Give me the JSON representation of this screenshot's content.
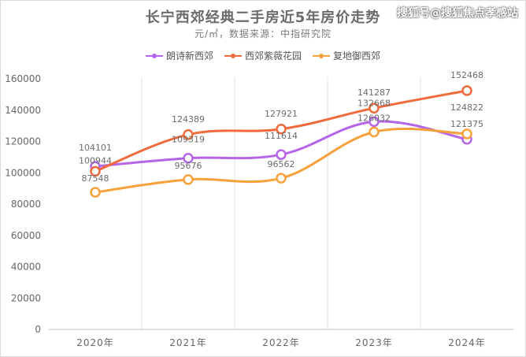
{
  "watermark": "搜狐号@搜狐焦点孝感站",
  "chart_data": {
    "type": "line",
    "title": "长宁西郊经典二手房近5年房价走势",
    "subtitle": "元/㎡，数据来源：中指研究院",
    "categories": [
      "2020年",
      "2021年",
      "2022年",
      "2023年",
      "2024年"
    ],
    "series": [
      {
        "name": "朗诗新西郊",
        "color": "#b565e8",
        "values": [
          104101,
          109319,
          111614,
          132668,
          121375
        ]
      },
      {
        "name": "西郊紫薇花园",
        "color": "#f06a3c",
        "values": [
          100944,
          124389,
          127921,
          141287,
          152468
        ]
      },
      {
        "name": "复地御西郊",
        "color": "#f7a13a",
        "values": [
          87548,
          95676,
          96562,
          126032,
          124822
        ]
      }
    ],
    "y_ticks": [
      "0",
      "20000",
      "40000",
      "60000",
      "80000",
      "100000",
      "120000",
      "140000",
      "160000"
    ],
    "ylim": [
      0,
      160000
    ],
    "grid": "vertical",
    "legend": "top"
  }
}
